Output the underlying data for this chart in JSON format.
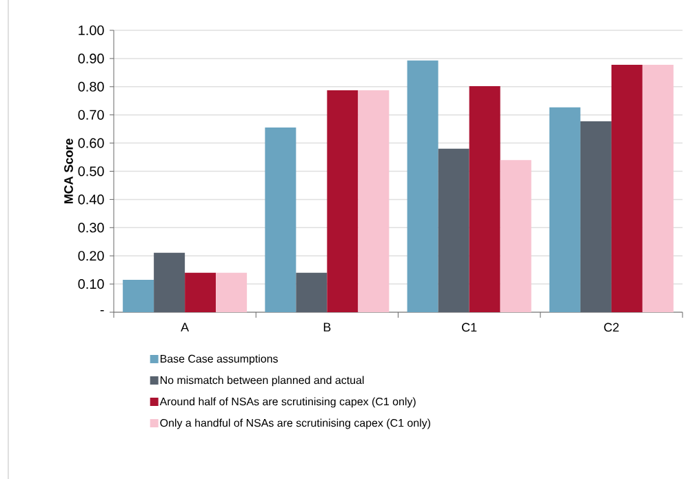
{
  "chart_data": {
    "type": "bar",
    "ylabel": "MCA Score",
    "categories": [
      "A",
      "B",
      "C1",
      "C2"
    ],
    "series": [
      {
        "name": "Base Case assumptions",
        "color": "#6aa4c0",
        "values": [
          0.115,
          0.655,
          0.893,
          0.727
        ]
      },
      {
        "name": "No mismatch between planned and actual",
        "color": "#58626e",
        "values": [
          0.211,
          0.14,
          0.58,
          0.677
        ]
      },
      {
        "name": "Around half of NSAs are scrutinising capex (C1 only)",
        "color": "#ab1230",
        "values": [
          0.14,
          0.787,
          0.802,
          0.878
        ]
      },
      {
        "name": "Only a handful of NSAs are scrutinising capex (C1 only)",
        "color": "#f8c3d0",
        "values": [
          0.14,
          0.787,
          0.54,
          0.878
        ]
      }
    ],
    "ylim": [
      0,
      1
    ],
    "yticks": [
      {
        "value": 0,
        "label": "-"
      },
      {
        "value": 0.1,
        "label": "0.10"
      },
      {
        "value": 0.2,
        "label": "0.20"
      },
      {
        "value": 0.3,
        "label": "0.30"
      },
      {
        "value": 0.4,
        "label": "0.40"
      },
      {
        "value": 0.5,
        "label": "0.50"
      },
      {
        "value": 0.6,
        "label": "0.60"
      },
      {
        "value": 0.7,
        "label": "0.70"
      },
      {
        "value": 0.8,
        "label": "0.80"
      },
      {
        "value": 0.9,
        "label": "0.90"
      },
      {
        "value": 1,
        "label": "1.00"
      }
    ],
    "grid": "y",
    "legend": "bottom"
  }
}
